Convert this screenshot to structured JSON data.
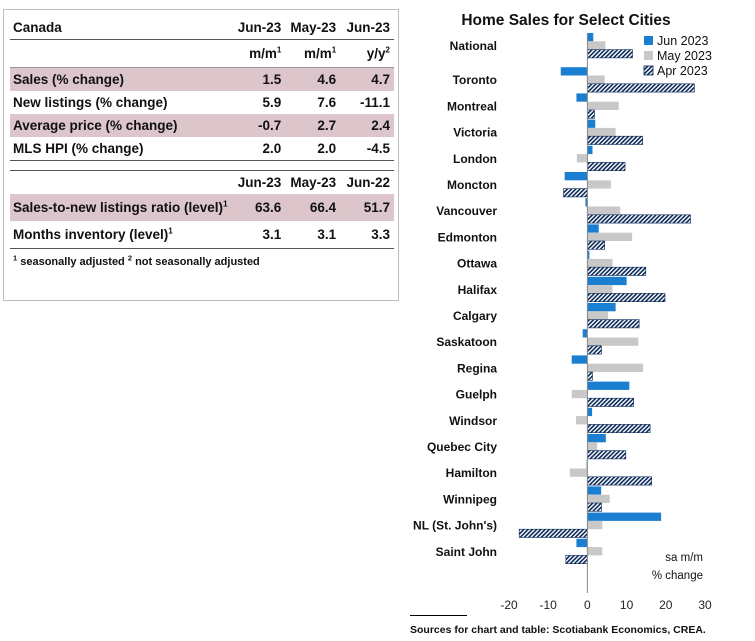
{
  "table": {
    "title": "Canada",
    "header1": [
      "Jun-23",
      "May-23",
      "Jun-23"
    ],
    "units": [
      {
        "base": "m/m",
        "sup": "1"
      },
      {
        "base": "m/m",
        "sup": "1"
      },
      {
        "base": "y/y",
        "sup": "2"
      }
    ],
    "rows1": [
      {
        "label": "Sales (% change)",
        "values": [
          "1.5",
          "4.6",
          "4.7"
        ]
      },
      {
        "label": "New listings (% change)",
        "values": [
          "5.9",
          "7.6",
          "-11.1"
        ]
      },
      {
        "label": "Average price (% change)",
        "values": [
          "-0.7",
          "2.7",
          "2.4"
        ]
      },
      {
        "label": "MLS HPI (% change)",
        "values": [
          "2.0",
          "2.0",
          "-4.5"
        ]
      }
    ],
    "header2": [
      "Jun-23",
      "May-23",
      "Jun-22"
    ],
    "rows2": [
      {
        "label": "Sales-to-new listings ratio (level)",
        "sup": "1",
        "values": [
          "63.6",
          "66.4",
          "51.7"
        ]
      },
      {
        "label": "Months inventory (level)",
        "sup": "1",
        "values": [
          "3.1",
          "3.1",
          "3.3"
        ]
      }
    ],
    "footnote": {
      "sup1": "1",
      "text1": "seasonally adjusted",
      "sup2": "2",
      "text2": "not seasonally adjusted"
    }
  },
  "chart_data": {
    "type": "bar",
    "orientation": "horizontal",
    "title": "Home Sales for Select Cities",
    "categories": [
      "National",
      "Toronto",
      "Montreal",
      "Victoria",
      "London",
      "Moncton",
      "Vancouver",
      "Edmonton",
      "Ottawa",
      "Halifax",
      "Calgary",
      "Saskatoon",
      "Regina",
      "Guelph",
      "Windsor",
      "Quebec City",
      "Hamilton",
      "Winnipeg",
      "NL (St. John's)",
      "Saint John"
    ],
    "series": [
      {
        "name": "Jun 2023",
        "color": "#1b7fd1",
        "pattern": "solid",
        "values": [
          1.5,
          -6.8,
          -2.8,
          2.0,
          1.3,
          -5.8,
          -0.5,
          2.9,
          0.5,
          10.0,
          7.2,
          -1.2,
          -4.0,
          10.7,
          1.2,
          4.7,
          -0.2,
          3.5,
          18.8,
          -2.8
        ]
      },
      {
        "name": "May 2023",
        "color": "#c8c8c8",
        "pattern": "solid",
        "values": [
          4.6,
          4.4,
          8.0,
          7.2,
          -2.7,
          6.0,
          8.4,
          11.4,
          6.4,
          6.4,
          5.3,
          13.0,
          14.2,
          -4.0,
          -2.9,
          2.5,
          -4.5,
          5.7,
          3.8,
          3.8
        ]
      },
      {
        "name": "Apr 2023",
        "color": "#0b2a5a",
        "pattern": "hatched",
        "values": [
          11.5,
          27.3,
          1.8,
          14.1,
          9.6,
          -6.1,
          26.3,
          4.4,
          14.9,
          19.8,
          13.2,
          3.6,
          1.3,
          11.8,
          16.0,
          9.8,
          16.4,
          3.6,
          -17.4,
          -5.5
        ]
      }
    ],
    "xlim": [
      -20,
      30
    ],
    "xticks": [
      -20,
      -10,
      0,
      10,
      20,
      30
    ],
    "annotation": [
      "sa m/m",
      "% change"
    ],
    "legend_position": "top-right",
    "grid": false
  },
  "sources": "Sources for chart and table: Scotiabank Economics, CREA."
}
